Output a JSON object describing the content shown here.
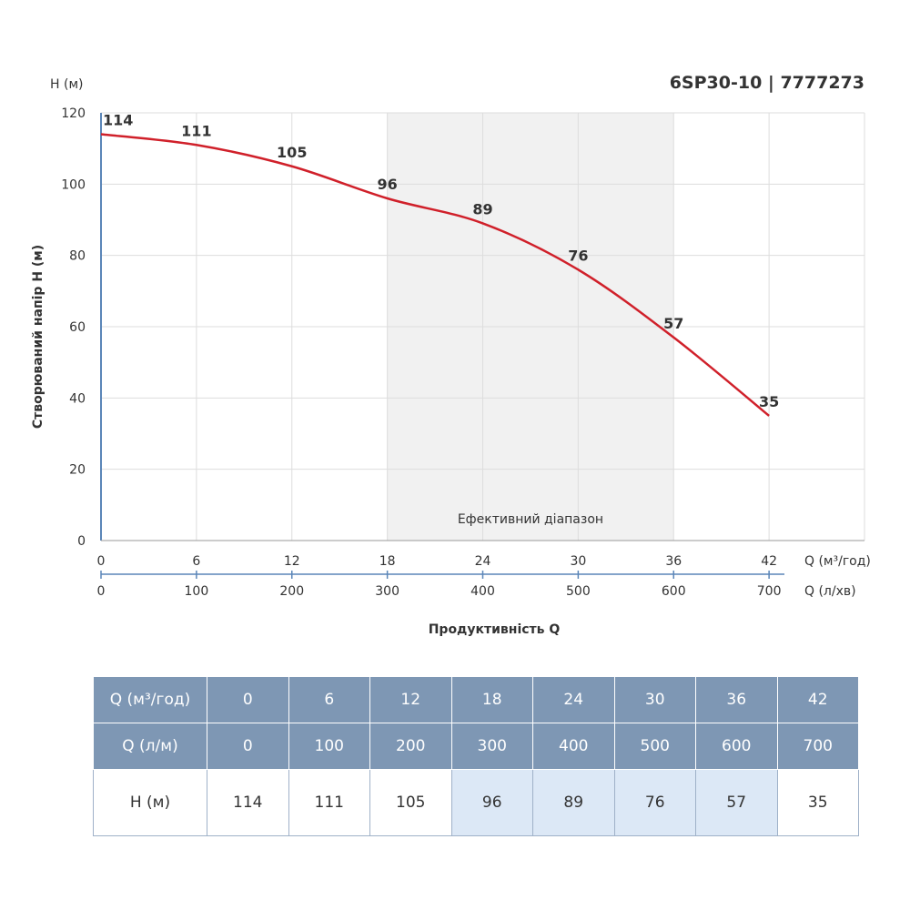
{
  "header": {
    "model": "6SP30-10 | 7777273"
  },
  "chart_data": {
    "type": "line",
    "y_unit_label": "H (м)",
    "ylabel": "Створюваний напір H (м)",
    "xlabel": "Продуктивність Q",
    "x_primary_unit": "Q (м³/год)",
    "x_secondary_unit": "Q (л/хв)",
    "x_primary_ticks": [
      "0",
      "6",
      "12",
      "18",
      "24",
      "30",
      "36",
      "42"
    ],
    "x_secondary_ticks": [
      "0",
      "100",
      "200",
      "300",
      "400",
      "500",
      "600",
      "700"
    ],
    "y_ticks": [
      "0",
      "20",
      "40",
      "60",
      "80",
      "100",
      "120"
    ],
    "xlim": [
      0,
      48
    ],
    "ylim": [
      0,
      120
    ],
    "x": [
      0,
      6,
      12,
      18,
      24,
      30,
      36,
      42
    ],
    "series": [
      {
        "values": [
          114,
          111,
          105,
          96,
          89,
          76,
          57,
          35
        ],
        "color": "#d0202a"
      }
    ],
    "efficient_range": {
      "from": 18,
      "to": 36,
      "label": "Ефективний діапазон"
    },
    "grid": true
  },
  "table": {
    "rows": [
      {
        "label": "Q (м³/год)",
        "cells": [
          "0",
          "6",
          "12",
          "18",
          "24",
          "30",
          "36",
          "42"
        ]
      },
      {
        "label": "Q (л/м)",
        "cells": [
          "0",
          "100",
          "200",
          "300",
          "400",
          "500",
          "600",
          "700"
        ]
      },
      {
        "label": "H (м)",
        "cells": [
          "114",
          "111",
          "105",
          "96",
          "89",
          "76",
          "57",
          "35"
        ]
      }
    ],
    "highlight_color": "#dce8f6",
    "header_color": "#7e97b4"
  }
}
